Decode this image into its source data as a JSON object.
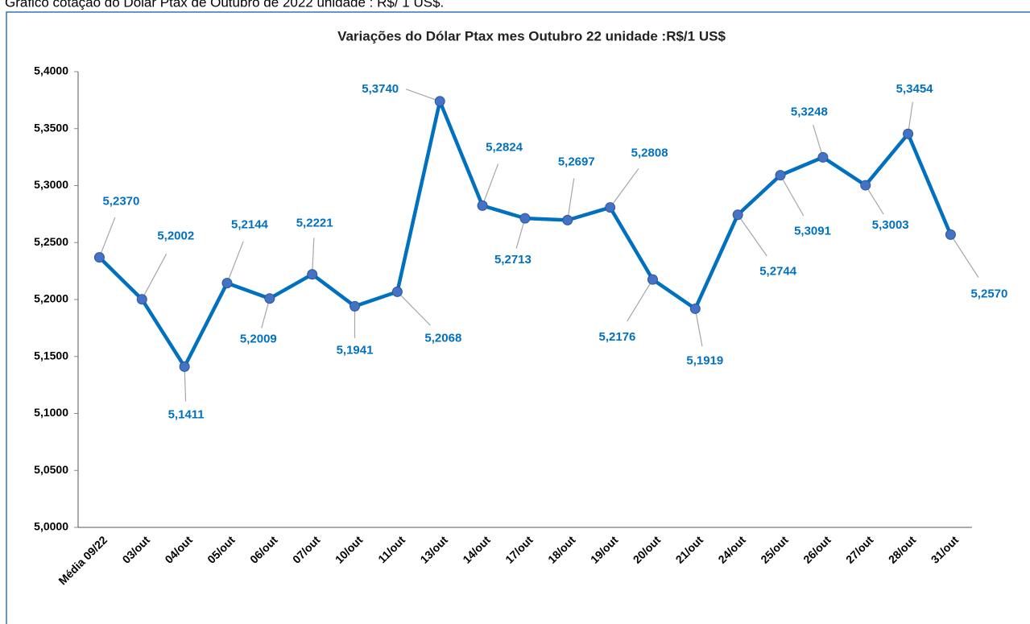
{
  "heading": "Gráfico cotação do Dólar Ptax de Outubro de 2022 unidade : R$/ 1 US$.",
  "chart_data": {
    "type": "line",
    "title": "Variações do Dólar Ptax mes Outubro 22 unidade :R$/1 US$",
    "categories": [
      "Média 09/22",
      "03/out",
      "04/out",
      "05/out",
      "06/out",
      "07/out",
      "10/out",
      "11/out",
      "13/out",
      "14/out",
      "17/out",
      "18/out",
      "19/out",
      "20/out",
      "21/out",
      "24/out",
      "25/out",
      "26/out",
      "27/out",
      "28/out",
      "31/out"
    ],
    "series": [
      {
        "name": "Dólar Ptax",
        "color": "#0070c0",
        "values": [
          5.237,
          5.2002,
          5.1411,
          5.2144,
          5.2009,
          5.2221,
          5.1941,
          5.2068,
          5.374,
          5.2824,
          5.2713,
          5.2697,
          5.2808,
          5.2176,
          5.1919,
          5.2744,
          5.3091,
          5.3248,
          5.3003,
          5.3454,
          5.257
        ],
        "value_labels": [
          "5,2370",
          "5,2002",
          "5,1411",
          "5,2144",
          "5,2009",
          "5,2221",
          "5,1941",
          "5,2068",
          "5,3740",
          "5,2824",
          "5,2713",
          "5,2697",
          "5,2808",
          "5,2176",
          "5,1919",
          "5,2744",
          "5,3091",
          "5,3248",
          "5,3003",
          "5,3454",
          "5,2570"
        ]
      }
    ],
    "ylim": [
      5.0,
      5.4
    ],
    "yticks": [
      {
        "value": 5.0,
        "label": "5,0000"
      },
      {
        "value": 5.05,
        "label": "5,0500"
      },
      {
        "value": 5.1,
        "label": "5,1000"
      },
      {
        "value": 5.15,
        "label": "5,1500"
      },
      {
        "value": 5.2,
        "label": "5,2000"
      },
      {
        "value": 5.25,
        "label": "5,2500"
      },
      {
        "value": 5.3,
        "label": "5,3000"
      },
      {
        "value": 5.35,
        "label": "5,3500"
      },
      {
        "value": 5.4,
        "label": "5,4000"
      }
    ],
    "grid": false
  }
}
